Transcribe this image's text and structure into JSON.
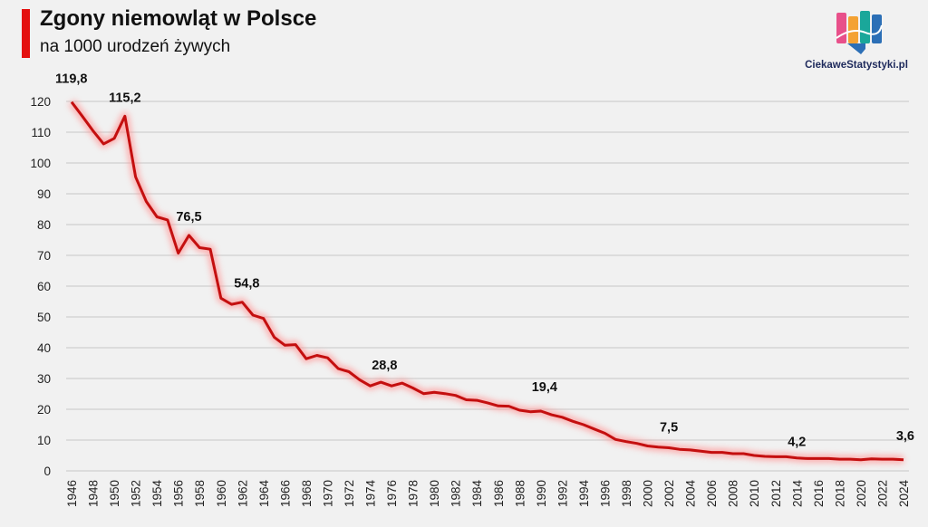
{
  "title": "Zgony niemowląt w Polsce",
  "subtitle": "na 1000 urodzeń żywych",
  "brand": "CiekaweStatystyki.pl",
  "colors": {
    "line": "#c40f0f",
    "glow": "#ff9a9a",
    "accent": "#e4100f",
    "grid": "#c8c8c8"
  },
  "chart_data": {
    "type": "line",
    "title": "Zgony niemowląt w Polsce",
    "subtitle": "na 1000 urodzeń żywych",
    "xlabel": "",
    "ylabel": "",
    "ylim": [
      0,
      120
    ],
    "yticks": [
      0,
      10,
      20,
      30,
      40,
      50,
      60,
      70,
      80,
      90,
      100,
      110,
      120
    ],
    "xticks": [
      1946,
      1948,
      1950,
      1952,
      1954,
      1956,
      1958,
      1960,
      1962,
      1964,
      1966,
      1968,
      1970,
      1972,
      1974,
      1976,
      1978,
      1980,
      1982,
      1984,
      1986,
      1988,
      1990,
      1992,
      1994,
      1996,
      1998,
      2000,
      2002,
      2004,
      2006,
      2008,
      2010,
      2012,
      2014,
      2016,
      2018,
      2020,
      2022,
      2024
    ],
    "grid": true,
    "series": [
      {
        "name": "Zgony niemowląt na 1000 urodzeń żywych",
        "x": [
          1946,
          1947,
          1948,
          1949,
          1950,
          1951,
          1952,
          1953,
          1954,
          1955,
          1956,
          1957,
          1958,
          1959,
          1960,
          1961,
          1962,
          1963,
          1964,
          1965,
          1966,
          1967,
          1968,
          1969,
          1970,
          1971,
          1972,
          1973,
          1974,
          1975,
          1976,
          1977,
          1978,
          1979,
          1980,
          1981,
          1982,
          1983,
          1984,
          1985,
          1986,
          1987,
          1988,
          1989,
          1990,
          1991,
          1992,
          1993,
          1994,
          1995,
          1996,
          1997,
          1998,
          1999,
          2000,
          2001,
          2002,
          2003,
          2004,
          2005,
          2006,
          2007,
          2008,
          2009,
          2010,
          2011,
          2012,
          2013,
          2014,
          2015,
          2016,
          2017,
          2018,
          2019,
          2020,
          2021,
          2022,
          2023,
          2024
        ],
        "values": [
          119.8,
          115.2,
          110.5,
          106.2,
          108.0,
          115.2,
          95.5,
          87.5,
          82.5,
          81.5,
          70.7,
          76.5,
          72.5,
          72.0,
          56.1,
          54.1,
          54.8,
          50.6,
          49.5,
          43.4,
          40.8,
          41.0,
          36.4,
          37.5,
          36.7,
          33.2,
          32.2,
          29.6,
          27.6,
          28.8,
          27.6,
          28.5,
          26.9,
          25.1,
          25.5,
          25.1,
          24.5,
          23.1,
          22.9,
          22.1,
          21.1,
          21.0,
          19.7,
          19.2,
          19.4,
          18.2,
          17.4,
          16.1,
          15.0,
          13.6,
          12.2,
          10.2,
          9.5,
          8.9,
          8.1,
          7.7,
          7.5,
          7.0,
          6.8,
          6.4,
          6.0,
          6.0,
          5.6,
          5.6,
          5.0,
          4.7,
          4.6,
          4.6,
          4.2,
          4.0,
          4.0,
          4.0,
          3.8,
          3.8,
          3.6,
          3.9,
          3.8,
          3.8,
          3.6
        ]
      }
    ],
    "annotations": [
      {
        "x": 1946,
        "y": 119.8,
        "text": "119,8"
      },
      {
        "x": 1951,
        "y": 115.2,
        "text": "115,2"
      },
      {
        "x": 1957,
        "y": 76.5,
        "text": "76,5"
      },
      {
        "x": 1962,
        "y": 54.8,
        "text": "54,8"
      },
      {
        "x": 1975,
        "y": 28.8,
        "text": "28,8"
      },
      {
        "x": 1990,
        "y": 19.4,
        "text": "19,4"
      },
      {
        "x": 2002,
        "y": 7.5,
        "text": "7,5"
      },
      {
        "x": 2014,
        "y": 4.2,
        "text": "4,2"
      },
      {
        "x": 2024,
        "y": 3.6,
        "text": "3,6"
      }
    ]
  }
}
